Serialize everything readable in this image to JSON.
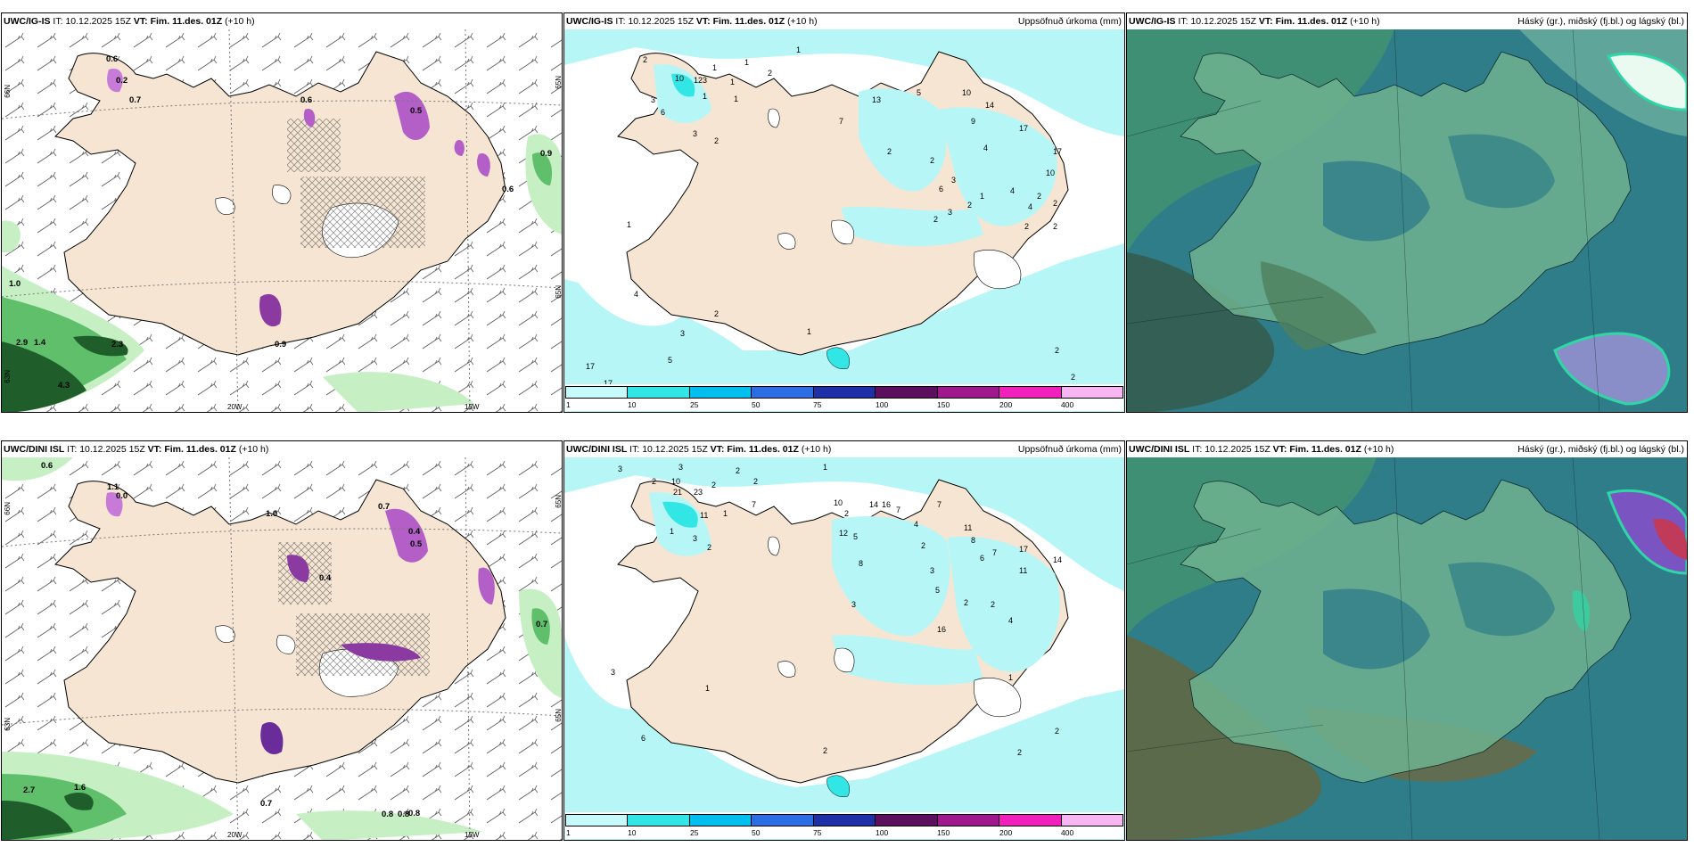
{
  "rows": [
    {
      "model": "UWC/IG-IS",
      "it_label": "IT:",
      "it_value": "10.12.2025 15Z",
      "vt_label": "VT:",
      "vt_value": "Fim. 11.des. 01Z",
      "lead": "(+10 h)",
      "left_values": [
        "0.6",
        "0.2",
        "0.7",
        "0.9",
        "0.6",
        "1.0",
        "2.9",
        "2.3",
        "4.3",
        "0.5",
        "0.9",
        "0.6",
        "1.4"
      ],
      "mid_numbers": [
        "1",
        "1",
        "2",
        "1",
        "1",
        "1",
        "2",
        "1",
        "1",
        "3",
        "2",
        "6",
        "10",
        "23",
        "3",
        "7",
        "13",
        "5",
        "10",
        "14",
        "9",
        "17",
        "17",
        "10",
        "4",
        "2",
        "2",
        "6",
        "3",
        "4",
        "1",
        "4",
        "2",
        "2",
        "2",
        "3",
        "2",
        "2",
        "2",
        "4",
        "2",
        "3",
        "5",
        "17",
        "17",
        "2",
        "2",
        "1",
        "1"
      ],
      "left_ticks": {
        "x1": "20W",
        "x2": "15W",
        "y1": "66N",
        "y2": "65N",
        "y3": "63N",
        "y4": "65N"
      }
    },
    {
      "model": "UWC/DINI ISL",
      "it_label": "IT:",
      "it_value": "10.12.2025 15Z",
      "vt_label": "VT:",
      "vt_value": "Fim. 11.des. 01Z",
      "lead": "(+10 h)",
      "left_values": [
        "0.6",
        "1.1",
        "0.0",
        "1.0",
        "0.7",
        "0.4",
        "0.5",
        "0.7",
        "0.4",
        "2.7",
        "1.6",
        "0.7",
        "0.8",
        "0.8",
        "0.8"
      ],
      "mid_numbers": [
        "3",
        "3",
        "2",
        "2",
        "2",
        "2",
        "1",
        "1",
        "1",
        "10",
        "21",
        "23",
        "11",
        "3",
        "2",
        "7",
        "14",
        "16",
        "2",
        "7",
        "10",
        "12",
        "5",
        "8",
        "7",
        "4",
        "2",
        "11",
        "8",
        "6",
        "7",
        "17",
        "14",
        "11",
        "3",
        "2",
        "5",
        "2",
        "4",
        "16",
        "3",
        "3",
        "6",
        "2",
        "2",
        "1",
        "1",
        "2"
      ],
      "left_ticks": {
        "x1": "20W",
        "x2": "15W",
        "y1": "66N",
        "y2": "65N",
        "y3": "63N",
        "y4": "65N"
      }
    }
  ],
  "middle_title": "Uppsöfnuð úrkoma (mm)",
  "right_title": "Háský (gr.), miðský (fj.bl.) og lágský (bl.)",
  "colorbar": {
    "ticks": [
      "1",
      "10",
      "25",
      "50",
      "75",
      "100",
      "150",
      "200",
      "400"
    ],
    "colors": [
      "#c7fbfb",
      "#33e6e6",
      "#00bfee",
      "#2e6ee5",
      "#1f2fa8",
      "#5c0f5c",
      "#a0188e",
      "#f021bb",
      "#f7b6f2"
    ]
  },
  "colors": {
    "land": "#f5e5d2",
    "sea_light_green": "#c6f0c4",
    "sea_green": "#5fbf6a",
    "dark_green": "#1f5d2a",
    "cyan_precip": "#b7f6f6",
    "cloud_teal": "#2f7d89",
    "cloud_green": "#6fb38f",
    "snow_purple": "#b45ec8"
  }
}
